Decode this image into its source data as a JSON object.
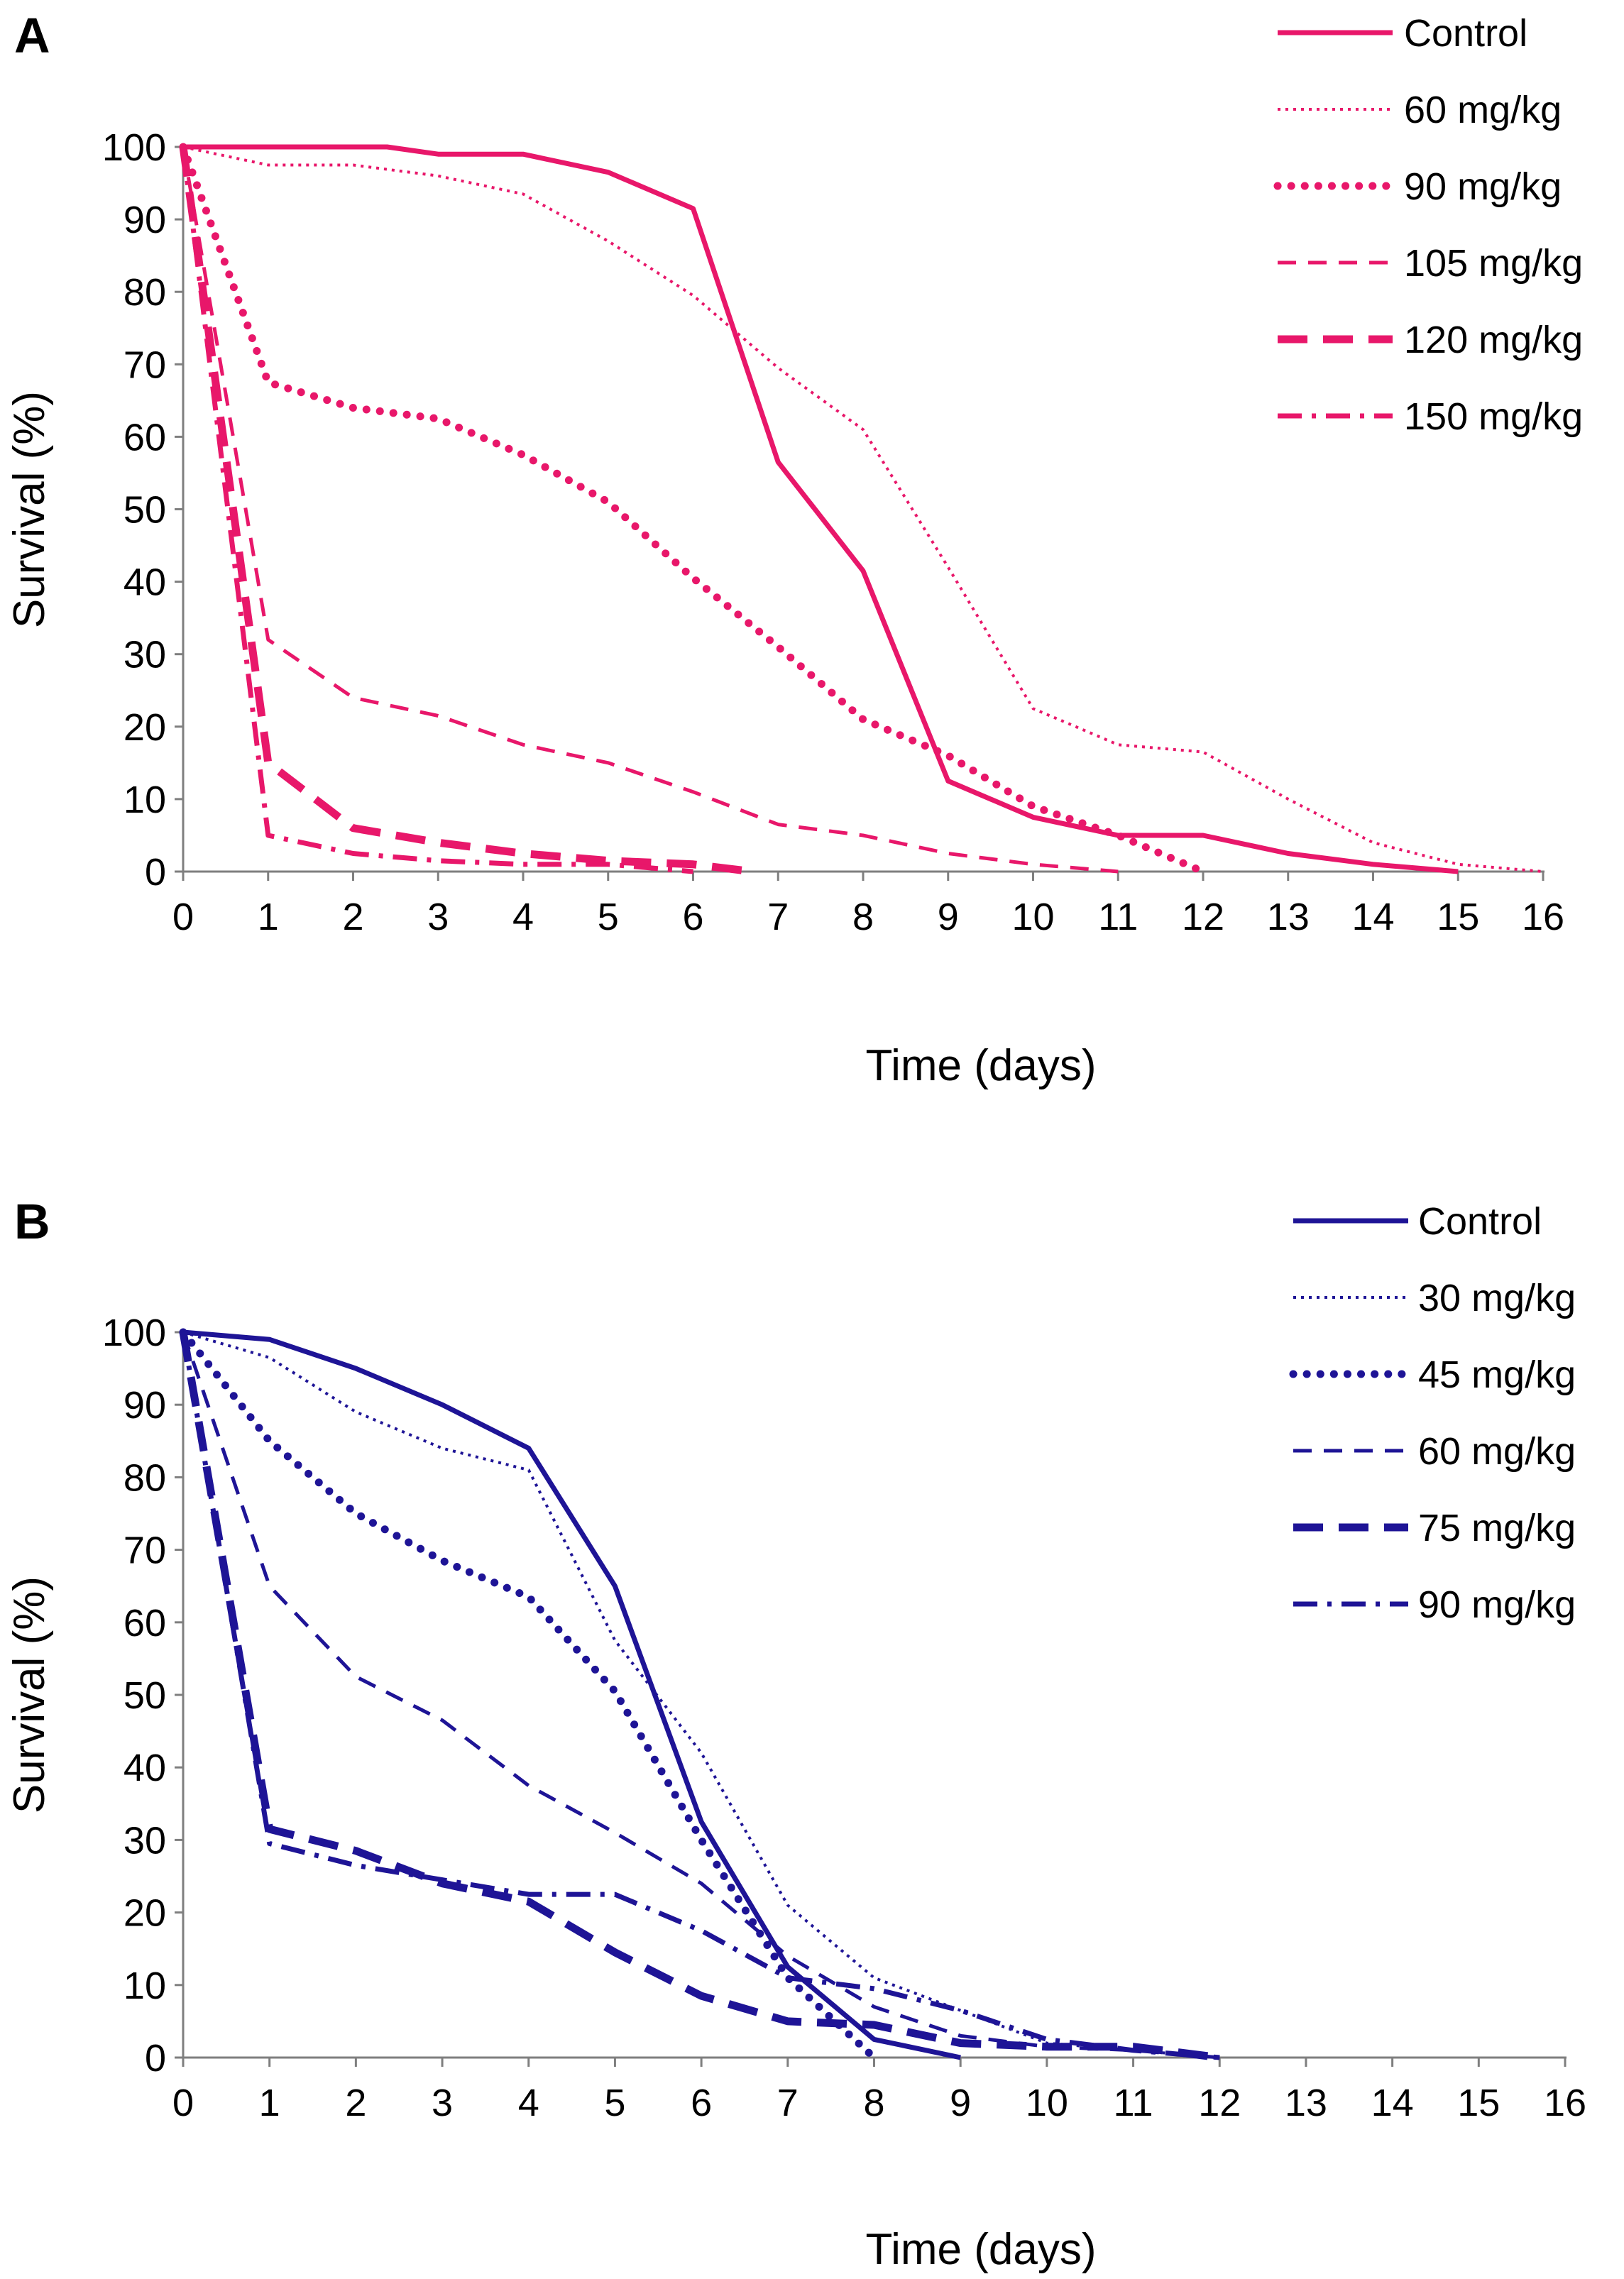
{
  "chart_data": [
    {
      "type": "line",
      "panel": "A",
      "color": "#E8176A",
      "xlabel": "Time (days)",
      "ylabel": "Survival (%)",
      "xlim": [
        0,
        16
      ],
      "ylim": [
        0,
        100
      ],
      "xticks": [
        "0",
        "1",
        "2",
        "3",
        "4",
        "5",
        "6",
        "7",
        "8",
        "9",
        "10",
        "11",
        "12",
        "13",
        "14",
        "15",
        "16"
      ],
      "yticks": [
        "0",
        "10",
        "20",
        "30",
        "40",
        "50",
        "60",
        "70",
        "80",
        "90",
        "100"
      ],
      "legend_position": "top-right",
      "series": [
        {
          "name": "Control",
          "style": "solid",
          "x": [
            0,
            1,
            2,
            2.4,
            3,
            4,
            5,
            6,
            7,
            8,
            9,
            10,
            11,
            12,
            13,
            14,
            15
          ],
          "y": [
            100,
            100,
            100,
            100,
            99,
            99,
            96.5,
            91.5,
            56.5,
            41.5,
            12.5,
            7.5,
            5,
            5,
            2.5,
            1,
            0
          ]
        },
        {
          "name": "60 mg/kg",
          "style": "fine-dotted",
          "x": [
            0,
            1,
            2,
            3,
            4,
            5,
            6,
            7,
            8,
            9,
            10,
            11,
            12,
            13,
            14,
            15,
            16
          ],
          "y": [
            100,
            97.5,
            97.5,
            96,
            93.5,
            87,
            79.5,
            69.5,
            61,
            42,
            22.5,
            17.5,
            16.5,
            10,
            4,
            1,
            0
          ]
        },
        {
          "name": "90 mg/kg",
          "style": "round-dotted",
          "x": [
            0,
            1,
            2,
            3,
            4,
            5,
            6,
            7,
            8,
            9,
            10,
            11,
            12
          ],
          "y": [
            100,
            67.5,
            64,
            62.5,
            57.5,
            51,
            40.5,
            31,
            21,
            16,
            9,
            5,
            0
          ]
        },
        {
          "name": "105 mg/kg",
          "style": "dashed",
          "x": [
            0,
            1,
            2,
            3,
            4,
            5,
            6,
            7,
            8,
            9,
            10,
            11
          ],
          "y": [
            100,
            32,
            24,
            21.5,
            17.5,
            15,
            11,
            6.5,
            5,
            2.5,
            1,
            0
          ]
        },
        {
          "name": "120 mg/kg",
          "style": "long-dash",
          "x": [
            0,
            1,
            2,
            3,
            4,
            5,
            6,
            6.7
          ],
          "y": [
            100,
            15,
            6,
            4,
            2.5,
            1.5,
            1,
            0
          ]
        },
        {
          "name": "150 mg/kg",
          "style": "dash-dot",
          "x": [
            0,
            1,
            2,
            3,
            4,
            5,
            6
          ],
          "y": [
            100,
            5,
            2.5,
            1.5,
            1,
            1,
            0
          ]
        }
      ]
    },
    {
      "type": "line",
      "panel": "B",
      "color": "#1E1496",
      "xlabel": "Time (days)",
      "ylabel": "Survival (%)",
      "xlim": [
        0,
        16
      ],
      "ylim": [
        0,
        100
      ],
      "xticks": [
        "0",
        "1",
        "2",
        "3",
        "4",
        "5",
        "6",
        "7",
        "8",
        "9",
        "10",
        "11",
        "12",
        "13",
        "14",
        "15",
        "16"
      ],
      "yticks": [
        "0",
        "10",
        "20",
        "30",
        "40",
        "50",
        "60",
        "70",
        "80",
        "90",
        "100"
      ],
      "legend_position": "top-right",
      "series": [
        {
          "name": "Control",
          "style": "solid",
          "x": [
            0,
            1,
            2,
            3,
            4,
            5,
            6,
            7,
            8,
            9
          ],
          "y": [
            100,
            99,
            95,
            90,
            84,
            65,
            32.5,
            12.5,
            2.5,
            0
          ]
        },
        {
          "name": "30 mg/kg",
          "style": "fine-dotted",
          "x": [
            0,
            1,
            2,
            3,
            4,
            5,
            6,
            7,
            8,
            9,
            10,
            11,
            12
          ],
          "y": [
            100,
            96.5,
            89,
            84,
            81,
            57.5,
            42,
            21,
            11,
            6.5,
            2,
            1,
            0
          ]
        },
        {
          "name": "45 mg/kg",
          "style": "round-dotted",
          "x": [
            0,
            1,
            2,
            3,
            4,
            5,
            6,
            7,
            8
          ],
          "y": [
            100,
            85,
            75,
            68.5,
            63.5,
            50.5,
            30,
            11,
            0
          ]
        },
        {
          "name": "60 mg/kg",
          "style": "dashed",
          "x": [
            0,
            1,
            2,
            3,
            4,
            5,
            6,
            7,
            8,
            9,
            10,
            11,
            12
          ],
          "y": [
            100,
            65,
            52.5,
            46.5,
            37.5,
            31,
            24,
            14,
            7,
            3,
            1.5,
            1,
            0
          ]
        },
        {
          "name": "75 mg/kg",
          "style": "long-dash",
          "x": [
            0,
            1,
            2,
            3,
            4,
            5,
            6,
            7,
            8,
            9,
            10,
            11,
            12
          ],
          "y": [
            100,
            31.5,
            28.5,
            24,
            21.5,
            14.5,
            8.5,
            5,
            4.5,
            2,
            1.5,
            1.5,
            0
          ]
        },
        {
          "name": "90 mg/kg",
          "style": "dash-dot",
          "x": [
            0,
            1,
            2,
            3,
            4,
            5,
            6,
            7,
            8,
            9,
            10,
            11,
            12
          ],
          "y": [
            100,
            29.5,
            26.5,
            24.5,
            22.5,
            22.5,
            17.5,
            11,
            9.5,
            6.5,
            2.5,
            1,
            0
          ]
        }
      ]
    }
  ]
}
